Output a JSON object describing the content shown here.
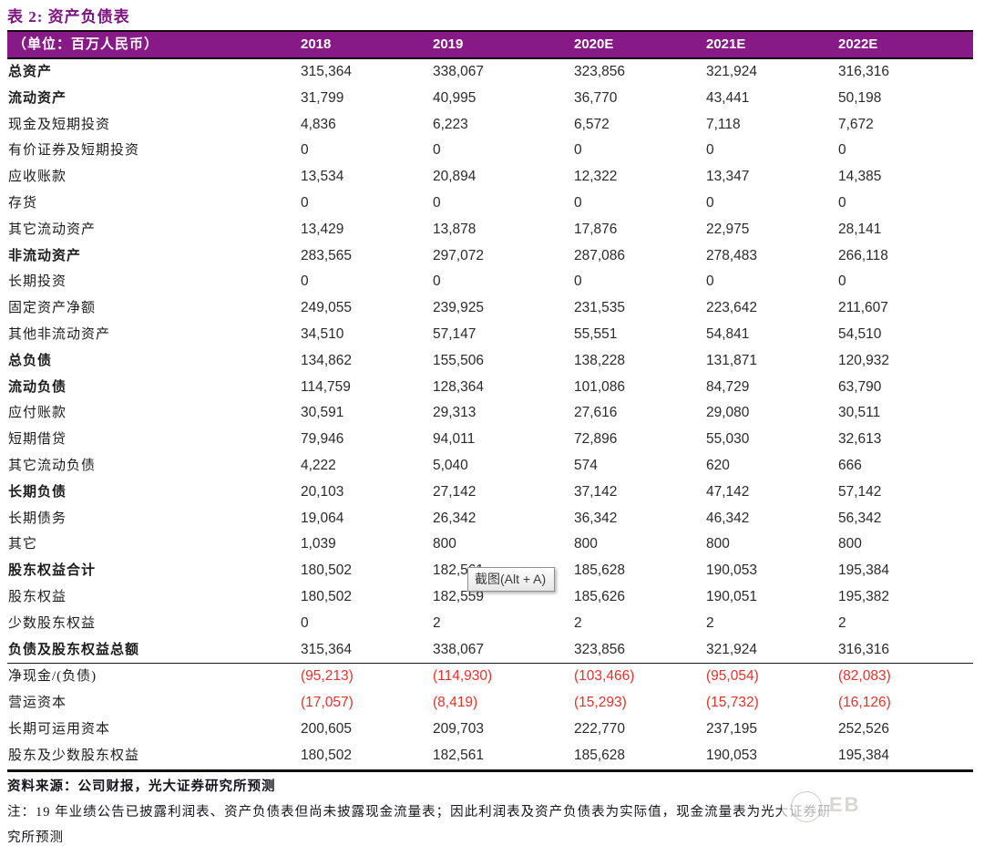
{
  "title": "表 2: 资产负债表",
  "table": {
    "unit_label": "（单位：百万人民币）",
    "columns": [
      "2018",
      "2019",
      "2020E",
      "2021E",
      "2022E"
    ],
    "rows": [
      {
        "label": "总资产",
        "bold": true,
        "values": [
          "315,364",
          "338,067",
          "323,856",
          "321,924",
          "316,316"
        ]
      },
      {
        "label": "流动资产",
        "bold": true,
        "values": [
          "31,799",
          "40,995",
          "36,770",
          "43,441",
          "50,198"
        ]
      },
      {
        "label": "现金及短期投资",
        "values": [
          "4,836",
          "6,223",
          "6,572",
          "7,118",
          "7,672"
        ]
      },
      {
        "label": "有价证券及短期投资",
        "values": [
          "0",
          "0",
          "0",
          "0",
          "0"
        ]
      },
      {
        "label": "应收账款",
        "values": [
          "13,534",
          "20,894",
          "12,322",
          "13,347",
          "14,385"
        ]
      },
      {
        "label": "存货",
        "values": [
          "0",
          "0",
          "0",
          "0",
          "0"
        ]
      },
      {
        "label": "其它流动资产",
        "values": [
          "13,429",
          "13,878",
          "17,876",
          "22,975",
          "28,141"
        ]
      },
      {
        "label": "非流动资产",
        "bold": true,
        "values": [
          "283,565",
          "297,072",
          "287,086",
          "278,483",
          "266,118"
        ]
      },
      {
        "label": "长期投资",
        "values": [
          "0",
          "0",
          "0",
          "0",
          "0"
        ]
      },
      {
        "label": "固定资产净额",
        "values": [
          "249,055",
          "239,925",
          "231,535",
          "223,642",
          "211,607"
        ]
      },
      {
        "label": "其他非流动资产",
        "values": [
          "34,510",
          "57,147",
          "55,551",
          "54,841",
          "54,510"
        ]
      },
      {
        "label": "总负债",
        "bold": true,
        "values": [
          "134,862",
          "155,506",
          "138,228",
          "131,871",
          "120,932"
        ]
      },
      {
        "label": "流动负债",
        "bold": true,
        "values": [
          "114,759",
          "128,364",
          "101,086",
          "84,729",
          "63,790"
        ]
      },
      {
        "label": "应付账款",
        "values": [
          "30,591",
          "29,313",
          "27,616",
          "29,080",
          "30,511"
        ]
      },
      {
        "label": "短期借贷",
        "values": [
          "79,946",
          "94,011",
          "72,896",
          "55,030",
          "32,613"
        ]
      },
      {
        "label": "其它流动负债",
        "values": [
          "4,222",
          "5,040",
          "574",
          "620",
          "666"
        ]
      },
      {
        "label": "长期负债",
        "bold": true,
        "values": [
          "20,103",
          "27,142",
          "37,142",
          "47,142",
          "57,142"
        ]
      },
      {
        "label": "长期债务",
        "values": [
          "19,064",
          "26,342",
          "36,342",
          "46,342",
          "56,342"
        ]
      },
      {
        "label": "其它",
        "values": [
          "1,039",
          "800",
          "800",
          "800",
          "800"
        ]
      },
      {
        "label": "股东权益合计",
        "bold": true,
        "values": [
          "180,502",
          "182,561",
          "185,628",
          "190,053",
          "195,384"
        ]
      },
      {
        "label": "股东权益",
        "values": [
          "180,502",
          "182,559",
          "185,626",
          "190,051",
          "195,382"
        ]
      },
      {
        "label": "少数股东权益",
        "values": [
          "0",
          "2",
          "2",
          "2",
          "2"
        ]
      },
      {
        "label": "负债及股东权益总额",
        "bold": true,
        "divider": "thin",
        "values": [
          "315,364",
          "338,067",
          "323,856",
          "321,924",
          "316,316"
        ]
      },
      {
        "label": "净现金/(负债)",
        "red": true,
        "values": [
          "(95,213)",
          "(114,930)",
          "(103,466)",
          "(95,054)",
          "(82,083)"
        ]
      },
      {
        "label": "营运资本",
        "red": true,
        "values": [
          "(17,057)",
          "(8,419)",
          "(15,293)",
          "(15,732)",
          "(16,126)"
        ]
      },
      {
        "label": "长期可运用资本",
        "values": [
          "200,605",
          "209,703",
          "222,770",
          "237,195",
          "252,526"
        ]
      },
      {
        "label": "股东及少数股东权益",
        "divider": "thick",
        "values": [
          "180,502",
          "182,561",
          "185,628",
          "190,053",
          "195,384"
        ]
      }
    ]
  },
  "footer": {
    "source": "资料来源：公司财报，光大证券研究所预测",
    "note_line1": "注：19 年业绩公告已披露利润表、资产负债表但尚未披露现金流量表；因此利润表及资产负债表为实际值，现金流量表为光大证券研",
    "note_line2": "究所预测"
  },
  "tooltip": {
    "text": "截图(Alt + A)"
  },
  "watermark_text": "EB",
  "colors": {
    "header_bg": "#871a87",
    "title": "#7d1482",
    "negative_red": "#e8312a"
  }
}
